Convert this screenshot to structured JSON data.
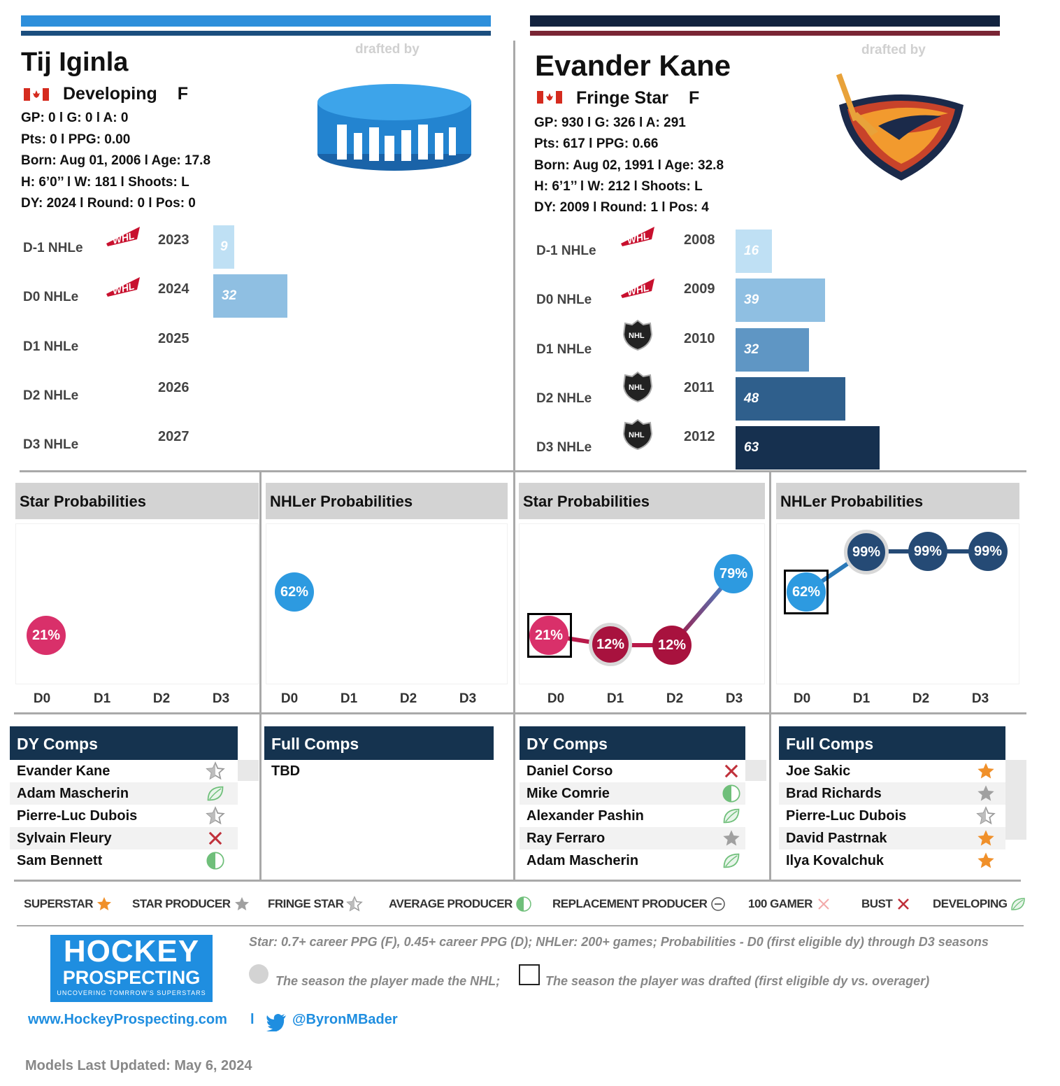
{
  "left_player": {
    "name": "Tij Iginla",
    "status": "Developing",
    "position": "F",
    "drafted_by_label": "drafted by",
    "stats_line1": "GP: 0 l G: 0 l A: 0",
    "stats_line2": "Pts: 0 l PPG: 0.00",
    "stats_line3": "Born: Aug 01, 2006 l Age: 17.8",
    "stats_line4": "H: 6’0’’ l W: 181 l Shoots: L",
    "stats_line5": "DY: 2024 l Round: 0 l Pos: 0",
    "nhle_rows": [
      {
        "label": "D-1 NHLe",
        "year": "2023",
        "value": "9",
        "value_num": 9
      },
      {
        "label": "D0 NHLe",
        "year": "2024",
        "value": "32",
        "value_num": 32
      },
      {
        "label": "D1 NHLe",
        "year": "2025",
        "value": "",
        "value_num": 0
      },
      {
        "label": "D2 NHLe",
        "year": "2026",
        "value": "",
        "value_num": 0
      },
      {
        "label": "D3 NHLe",
        "year": "2027",
        "value": "",
        "value_num": 0
      }
    ],
    "star_title": "Star Probabilities",
    "nhler_title": "NHLer Probabilities",
    "star_values": [
      "21%"
    ],
    "nhler_values": [
      "62%"
    ],
    "axis": [
      "D0",
      "D1",
      "D2",
      "D3"
    ],
    "dy_comps_title": "DY Comps",
    "full_comps_title": "Full Comps",
    "dy_comps": [
      "Evander Kane",
      "Adam Mascherin",
      "Pierre-Luc Dubois",
      "Sylvain Fleury",
      "Sam Bennett"
    ],
    "dy_comp_icons": [
      "fringe-star",
      "developing",
      "fringe-star",
      "bust",
      "average"
    ],
    "full_comps": [
      "TBD"
    ]
  },
  "right_player": {
    "name": "Evander Kane",
    "status": "Fringe Star",
    "position": "F",
    "drafted_by_label": "drafted by",
    "stats_line1": "GP: 930 l G: 326 l A: 291",
    "stats_line2": "Pts: 617 l PPG: 0.66",
    "stats_line3": "Born: Aug 02, 1991 l Age: 32.8",
    "stats_line4": "H: 6’1’’ l W: 212 l Shoots: L",
    "stats_line5": "DY: 2009 l Round: 1 l Pos: 4",
    "nhle_rows": [
      {
        "label": "D-1 NHLe",
        "year": "2008",
        "value": "16",
        "value_num": 16
      },
      {
        "label": "D0 NHLe",
        "year": "2009",
        "value": "39",
        "value_num": 39
      },
      {
        "label": "D1 NHLe",
        "year": "2010",
        "value": "32",
        "value_num": 32
      },
      {
        "label": "D2 NHLe",
        "year": "2011",
        "value": "48",
        "value_num": 48
      },
      {
        "label": "D3 NHLe",
        "year": "2012",
        "value": "63",
        "value_num": 63
      }
    ],
    "star_title": "Star Probabilities",
    "nhler_title": "NHLer Probabilities",
    "star_values": [
      "21%",
      "12%",
      "12%",
      "79%"
    ],
    "star_values_num": [
      21,
      12,
      12,
      79
    ],
    "nhler_values": [
      "62%",
      "99%",
      "99%",
      "99%"
    ],
    "nhler_values_num": [
      62,
      99,
      99,
      99
    ],
    "axis": [
      "D0",
      "D1",
      "D2",
      "D3"
    ],
    "dy_comps_title": "DY Comps",
    "full_comps_title": "Full Comps",
    "dy_comps": [
      "Daniel Corso",
      "Mike Comrie",
      "Alexander Pashin",
      "Ray Ferraro",
      "Adam Mascherin"
    ],
    "dy_comp_icons": [
      "bust",
      "average",
      "developing",
      "star-producer",
      "developing"
    ],
    "full_comps": [
      "Joe Sakic",
      "Brad Richards",
      "Pierre-Luc Dubois",
      "David Pastrnak",
      "Ilya Kovalchuk"
    ],
    "full_comp_icons": [
      "superstar",
      "star-producer",
      "fringe-star",
      "superstar",
      "superstar"
    ]
  },
  "legend": [
    {
      "label": "SUPERSTAR",
      "icon": "superstar"
    },
    {
      "label": "STAR PRODUCER",
      "icon": "star-producer"
    },
    {
      "label": "FRINGE STAR",
      "icon": "fringe-star"
    },
    {
      "label": "AVERAGE PRODUCER",
      "icon": "average"
    },
    {
      "label": "REPLACEMENT PRODUCER",
      "icon": "replacement"
    },
    {
      "label": "100 GAMER",
      "icon": "hundred-gamer"
    },
    {
      "label": "BUST",
      "icon": "bust"
    },
    {
      "label": "DEVELOPING",
      "icon": "developing"
    }
  ],
  "footer": {
    "logo_line1": "HOCKEY",
    "logo_line2": "PROSPECTING",
    "logo_tagline": "UNCOVERING TOMRROW'S SUPERSTARS",
    "note1": "Star: 0.7+ career PPG (F), 0.45+ career PPG (D); NHLer: 200+ games; Probabilities - D0 (first eligible dy) through D3 seasons",
    "note2": "The season the player made the NHL;",
    "note3": "The season the player was drafted (first eligible dy vs. overager)",
    "website": "www.HockeyProspecting.com",
    "separator": "l",
    "twitter": "@ByronMBader",
    "updated": "Models Last Updated: May 6, 2024"
  },
  "colors": {
    "left_stripe_top": "#2e8fdb",
    "left_stripe_bottom": "#1b4e7e",
    "right_stripe_top": "#12233f",
    "right_stripe_bottom": "#7a2534",
    "star_pink": "#d9306a",
    "star_crimson": "#a8123e",
    "nhl_blue": "#2d9ae0",
    "nhl_navy": "#254a75"
  }
}
